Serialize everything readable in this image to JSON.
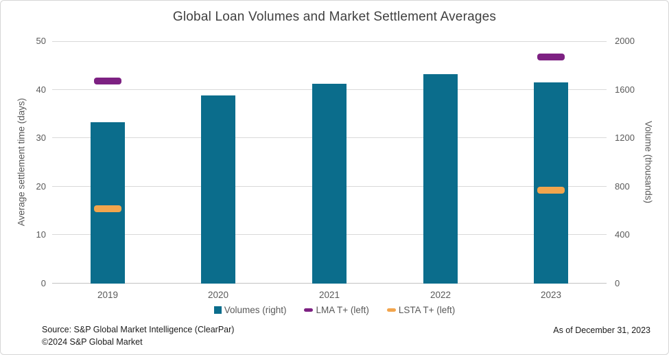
{
  "chart": {
    "title": "Global Loan Volumes and Market Settlement Averages",
    "as_of": "As of December 31, 2023",
    "source_line_1": "Source: S&P Global Market Intelligence (ClearPar)",
    "source_line_2": "©2024 S&P Global Market"
  },
  "legend": {
    "items": [
      {
        "label": "Volumes (right)",
        "color": "#0b6d8c",
        "marker": "square"
      },
      {
        "label": "LMA T+ (left)",
        "color": "#7d2182",
        "marker": "dash"
      },
      {
        "label": "LSTA T+ (left)",
        "color": "#f2a54d",
        "marker": "dash"
      }
    ]
  },
  "chart_data": {
    "type": "bar",
    "title": "Global Loan Volumes and Market Settlement Averages",
    "categories": [
      "2019",
      "2020",
      "2021",
      "2022",
      "2023"
    ],
    "series": [
      {
        "name": "Volumes (right)",
        "kind": "bar",
        "axis": "right",
        "color": "#0b6d8c",
        "values": [
          1330,
          1550,
          1650,
          1730,
          1660
        ]
      },
      {
        "name": "LMA T+ (left)",
        "kind": "tick-marker",
        "axis": "left",
        "color": "#7d2182",
        "values": [
          41.8,
          null,
          null,
          null,
          46.8
        ]
      },
      {
        "name": "LSTA T+ (left)",
        "kind": "tick-marker",
        "axis": "left",
        "color": "#f2a54d",
        "values": [
          15.4,
          null,
          null,
          null,
          19.3
        ]
      }
    ],
    "left_axis": {
      "label": "Average settlement time (days)",
      "ticks": [
        0,
        10,
        20,
        30,
        40,
        50
      ],
      "lim": [
        0,
        50
      ]
    },
    "right_axis": {
      "label": "Volume (thousands)",
      "ticks": [
        0,
        400,
        800,
        1200,
        1600,
        2000
      ],
      "lim": [
        0,
        2000
      ]
    },
    "grid": true,
    "legend_position": "bottom"
  },
  "colors": {
    "bar_teal": "#0b6d8c",
    "lma_purple": "#7d2182",
    "lsta_orange": "#f2a54d",
    "gridline": "#d9d9d9",
    "axis_line": "#c2c2c2",
    "title_text": "#404040",
    "tick_text": "#595959",
    "footer_text": "#1a1a1a"
  }
}
